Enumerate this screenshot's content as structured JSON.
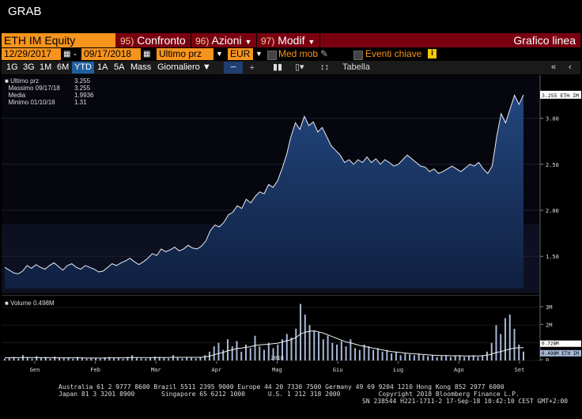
{
  "window": {
    "grab_label": "GRAB"
  },
  "command_bar": {
    "ticker": "ETH IM Equity",
    "items": [
      {
        "num": "95)",
        "label": "Confronto"
      },
      {
        "num": "96)",
        "label": "Azioni"
      },
      {
        "num": "97)",
        "label": "Modif"
      }
    ],
    "chart_type": "Grafico linea"
  },
  "row2": {
    "start_date": "12/29/2017",
    "end_date": "09/17/2018",
    "field": "Ultimo prz",
    "currency": "EUR",
    "med_mob": "Med mob",
    "eventi": "Eventi chiave",
    "info_icon": "i"
  },
  "row3": {
    "periods": [
      "1G",
      "3G",
      "1M",
      "6M",
      "YTD",
      "1A",
      "5A",
      "Mass"
    ],
    "frequency": "Giornaliero",
    "table_label": "Tabella"
  },
  "legend": {
    "rows": [
      {
        "label": "Ultimo prz",
        "value": "3.255"
      },
      {
        "label": "Massimo 09/17/18",
        "value": "3.255"
      },
      {
        "label": "Media",
        "value": "1.9936"
      },
      {
        "label": "Minimo 01/10/18",
        "value": "1.31"
      }
    ],
    "volume_label": "Volume 0.498M"
  },
  "chart_data": {
    "type": "area",
    "title": "",
    "ylabel": "",
    "xlabel": "",
    "ylim": [
      1.15,
      3.4
    ],
    "price_ticks": [
      "3.00",
      "2.50",
      "2.00",
      "1.50"
    ],
    "price_tick_values": [
      3.0,
      2.5,
      2.0,
      1.5
    ],
    "last_price_tag": "3.255 ETH IM",
    "x_month_labels": [
      "Gen",
      "Feb",
      "Mar",
      "Apr",
      "Mag",
      "Giu",
      "Lug",
      "Ago",
      "Set"
    ],
    "year_label": "2018",
    "series": [
      {
        "name": "Ultimo prz",
        "values": [
          1.38,
          1.35,
          1.32,
          1.31,
          1.34,
          1.4,
          1.37,
          1.41,
          1.38,
          1.36,
          1.4,
          1.43,
          1.39,
          1.35,
          1.4,
          1.42,
          1.38,
          1.36,
          1.4,
          1.38,
          1.36,
          1.33,
          1.34,
          1.38,
          1.42,
          1.4,
          1.43,
          1.45,
          1.48,
          1.44,
          1.41,
          1.44,
          1.48,
          1.53,
          1.51,
          1.58,
          1.55,
          1.57,
          1.6,
          1.56,
          1.58,
          1.62,
          1.59,
          1.58,
          1.61,
          1.67,
          1.78,
          1.84,
          1.82,
          1.87,
          1.95,
          1.98,
          2.05,
          2.02,
          2.12,
          2.08,
          2.15,
          2.2,
          2.18,
          2.28,
          2.25,
          2.32,
          2.45,
          2.6,
          2.8,
          2.95,
          2.88,
          3.02,
          2.92,
          2.96,
          2.85,
          2.9,
          2.8,
          2.7,
          2.65,
          2.6,
          2.52,
          2.55,
          2.5,
          2.55,
          2.52,
          2.58,
          2.52,
          2.56,
          2.5,
          2.55,
          2.52,
          2.48,
          2.5,
          2.55,
          2.6,
          2.56,
          2.52,
          2.48,
          2.47,
          2.42,
          2.45,
          2.4,
          2.42,
          2.45,
          2.48,
          2.45,
          2.42,
          2.46,
          2.5,
          2.48,
          2.52,
          2.45,
          2.4,
          2.48,
          2.8,
          3.05,
          2.95,
          3.1,
          3.25,
          3.15,
          3.255
        ]
      }
    ],
    "volume": {
      "label": "Volume 0.498M",
      "ticks": [
        "3M",
        "2M",
        "1M",
        "0"
      ],
      "tick_values": [
        3,
        2,
        1,
        0
      ],
      "ma_tag": "0.728M",
      "last_tag": "0.498M ETH IM",
      "ylim": [
        0,
        3.4
      ],
      "values": [
        0.1,
        0.15,
        0.2,
        0.12,
        0.3,
        0.18,
        0.1,
        0.25,
        0.14,
        0.2,
        0.1,
        0.22,
        0.15,
        0.12,
        0.18,
        0.1,
        0.2,
        0.14,
        0.1,
        0.16,
        0.12,
        0.1,
        0.18,
        0.2,
        0.12,
        0.15,
        0.1,
        0.2,
        0.3,
        0.15,
        0.12,
        0.1,
        0.18,
        0.22,
        0.2,
        0.15,
        0.12,
        0.3,
        0.2,
        0.12,
        0.18,
        0.15,
        0.12,
        0.2,
        0.3,
        0.5,
        0.8,
        1.0,
        0.6,
        1.2,
        0.8,
        1.1,
        0.5,
        0.9,
        0.7,
        1.4,
        0.8,
        0.6,
        1.0,
        0.7,
        0.9,
        1.2,
        1.5,
        1.3,
        1.8,
        3.2,
        2.6,
        2.0,
        1.7,
        1.6,
        1.2,
        1.4,
        1.0,
        0.9,
        1.1,
        0.8,
        1.2,
        0.7,
        0.6,
        0.9,
        0.8,
        0.6,
        0.7,
        0.5,
        0.6,
        0.4,
        0.5,
        0.3,
        0.4,
        0.35,
        0.3,
        0.4,
        0.3,
        0.25,
        0.3,
        0.2,
        0.25,
        0.3,
        0.2,
        0.25,
        0.3,
        0.2,
        0.25,
        0.3,
        0.2,
        0.3,
        0.5,
        1.0,
        2.0,
        1.5,
        2.4,
        2.6,
        1.8,
        0.9,
        0.5
      ],
      "ma_values": [
        0.15,
        0.15,
        0.16,
        0.16,
        0.17,
        0.17,
        0.16,
        0.16,
        0.16,
        0.16,
        0.15,
        0.15,
        0.15,
        0.15,
        0.15,
        0.15,
        0.15,
        0.15,
        0.14,
        0.14,
        0.14,
        0.14,
        0.14,
        0.15,
        0.15,
        0.15,
        0.15,
        0.16,
        0.17,
        0.17,
        0.17,
        0.16,
        0.16,
        0.17,
        0.17,
        0.17,
        0.17,
        0.18,
        0.18,
        0.18,
        0.18,
        0.18,
        0.18,
        0.18,
        0.2,
        0.25,
        0.32,
        0.4,
        0.45,
        0.55,
        0.6,
        0.68,
        0.7,
        0.75,
        0.78,
        0.85,
        0.88,
        0.9,
        0.92,
        0.95,
        0.98,
        1.05,
        1.12,
        1.18,
        1.3,
        1.5,
        1.6,
        1.65,
        1.68,
        1.62,
        1.55,
        1.45,
        1.35,
        1.25,
        1.15,
        1.05,
        1.0,
        0.92,
        0.85,
        0.8,
        0.75,
        0.7,
        0.65,
        0.6,
        0.55,
        0.5,
        0.48,
        0.45,
        0.42,
        0.4,
        0.38,
        0.36,
        0.34,
        0.32,
        0.3,
        0.29,
        0.28,
        0.28,
        0.27,
        0.27,
        0.27,
        0.26,
        0.26,
        0.26,
        0.26,
        0.27,
        0.3,
        0.36,
        0.45,
        0.5,
        0.58,
        0.65,
        0.7,
        0.72,
        0.728
      ]
    }
  },
  "footer": {
    "line1": "Australia 61 2 9777 8600 Brazil 5511 2395 9000 Europe 44 20 7330 7500 Germany 49 69 9204 1210 Hong Kong 852 2977 6000",
    "line2": "Japan 81 3 3201 8900       Singapore 65 6212 1000      U.S. 1 212 318 2000          Copyright 2018 Bloomberg Finance L.P.",
    "line3": "SN 238544 H221-1711-2 17-Sep-18 10:42:10 CEST GMT+2:00"
  },
  "colors": {
    "orange": "#f7941d",
    "maroon": "#7a0010",
    "area_fill": "#1c3a6a",
    "line": "#ffffff",
    "volume_bar": "#9fb3d6"
  }
}
